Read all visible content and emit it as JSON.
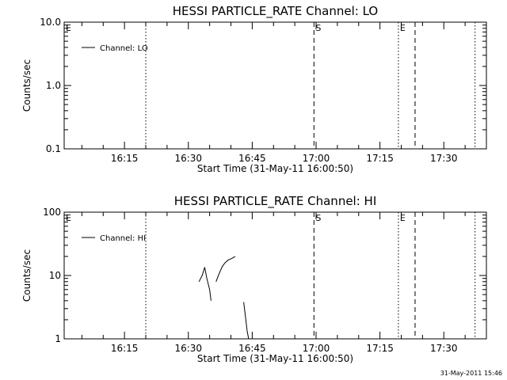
{
  "timestamp": "31-May-2011 15:46",
  "chart_data": [
    {
      "type": "line",
      "title": "HESSI PARTICLE_RATE Channel: LO",
      "xlabel": "Start Time (31-May-11 16:00:50)",
      "ylabel": "Counts/sec",
      "yscale": "log",
      "ylim": [
        0.1,
        10.0
      ],
      "xlim": [
        "16:00:50",
        "17:40:00"
      ],
      "x_ticks": [
        "16:15",
        "16:30",
        "16:45",
        "17:00",
        "17:15",
        "17:30"
      ],
      "y_ticks": [
        "0.1",
        "1.0",
        "10.0"
      ],
      "legend": {
        "placement": "top-left",
        "entries": [
          "Channel: LO"
        ]
      },
      "series": [
        {
          "name": "Channel: LO",
          "segments": []
        }
      ],
      "vlines": [
        {
          "time": "16:20:00",
          "style": "dotted"
        },
        {
          "time": "16:59:30",
          "style": "dashed",
          "label": "S"
        },
        {
          "time": "17:19:20",
          "style": "dotted",
          "label": "E"
        },
        {
          "time": "17:23:15",
          "style": "dashed"
        },
        {
          "time": "17:37:20",
          "style": "dotted"
        }
      ],
      "corner_label": "E",
      "grid": false
    },
    {
      "type": "line",
      "title": "HESSI PARTICLE_RATE Channel: HI",
      "xlabel": "Start Time (31-May-11 16:00:50)",
      "ylabel": "Counts/sec",
      "yscale": "log",
      "ylim": [
        1,
        100
      ],
      "xlim": [
        "16:00:50",
        "17:40:00"
      ],
      "x_ticks": [
        "16:15",
        "16:30",
        "16:45",
        "17:00",
        "17:15",
        "17:30"
      ],
      "y_ticks": [
        "1",
        "10",
        "100"
      ],
      "legend": {
        "placement": "top-left",
        "entries": [
          "Channel: HI"
        ]
      },
      "series": [
        {
          "name": "Channel: HI",
          "segments": [
            [
              [
                "16:32:30",
                8
              ],
              [
                "16:33:15",
                10
              ],
              [
                "16:33:50",
                13.5
              ],
              [
                "16:34:20",
                9
              ],
              [
                "16:35:00",
                6
              ],
              [
                "16:35:20",
                4
              ]
            ],
            [
              [
                "16:36:30",
                8
              ],
              [
                "16:37:10",
                10.5
              ],
              [
                "16:38:00",
                14
              ],
              [
                "16:38:40",
                16
              ],
              [
                "16:39:20",
                17.5
              ],
              [
                "16:40:10",
                18.5
              ],
              [
                "16:41:00",
                20
              ]
            ],
            [
              [
                "16:43:00",
                3.8
              ],
              [
                "16:43:25",
                2.2
              ],
              [
                "16:43:50",
                1.3
              ],
              [
                "16:44:10",
                1
              ]
            ]
          ]
        }
      ],
      "vlines": [
        {
          "time": "16:20:00",
          "style": "dotted"
        },
        {
          "time": "16:59:30",
          "style": "dashed",
          "label": "S"
        },
        {
          "time": "17:19:20",
          "style": "dotted",
          "label": "E"
        },
        {
          "time": "17:23:15",
          "style": "dashed"
        },
        {
          "time": "17:37:20",
          "style": "dotted"
        }
      ],
      "corner_label": "E",
      "grid": false
    }
  ]
}
